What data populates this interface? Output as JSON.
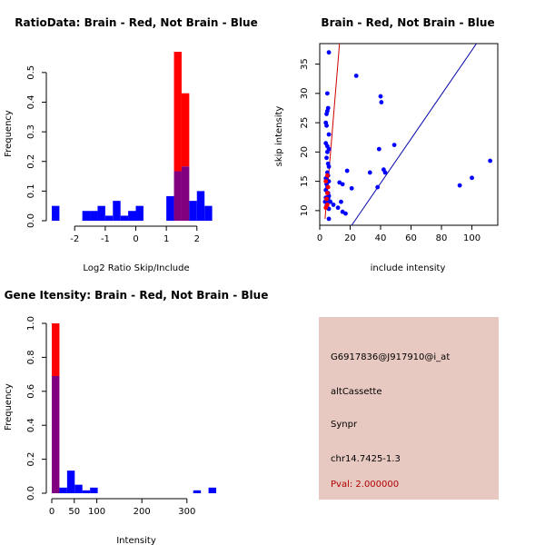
{
  "colors": {
    "brain": "#ff0000",
    "not_brain": "#0000ff",
    "overlap": "#800080",
    "info_bg": "#e8c9c1",
    "pval": "#b00000",
    "ink": "#000000",
    "diag": "#0000aa",
    "fit": "#cc0000"
  },
  "chart_data": [
    {
      "id": "ratio",
      "type": "bar",
      "title": "RatioData: Brain - Red, Not Brain - Blue",
      "xlabel": "Log2 Ratio Skip/Include",
      "ylabel": "Frequency",
      "xlim": [
        -2.75,
        2.75
      ],
      "ylim": [
        0,
        0.57
      ],
      "xticks": [
        -2,
        -1,
        0,
        1,
        2
      ],
      "xtick_labels": [
        "-2",
        "-1",
        "0",
        "1",
        "2"
      ],
      "yticks": [
        0,
        0.1,
        0.2,
        0.3,
        0.4,
        0.5
      ],
      "ytick_labels": [
        "0.0",
        "0.1",
        "0.2",
        "0.3",
        "0.4",
        "0.5"
      ],
      "bin_width": 0.25,
      "series": [
        {
          "name": "Not Brain",
          "color": "blue",
          "bins": [
            {
              "x0": -2.75,
              "v": 0.05
            },
            {
              "x0": -1.75,
              "v": 0.033
            },
            {
              "x0": -1.5,
              "v": 0.033
            },
            {
              "x0": -1.25,
              "v": 0.05
            },
            {
              "x0": -1.0,
              "v": 0.017
            },
            {
              "x0": -0.75,
              "v": 0.067
            },
            {
              "x0": -0.5,
              "v": 0.017
            },
            {
              "x0": -0.25,
              "v": 0.033
            },
            {
              "x0": 0.0,
              "v": 0.05
            },
            {
              "x0": 1.0,
              "v": 0.083
            },
            {
              "x0": 1.25,
              "v": 0.167
            },
            {
              "x0": 1.5,
              "v": 0.183
            },
            {
              "x0": 1.75,
              "v": 0.067
            },
            {
              "x0": 2.0,
              "v": 0.1
            },
            {
              "x0": 2.25,
              "v": 0.05
            }
          ]
        },
        {
          "name": "Brain",
          "color": "red",
          "bins": [
            {
              "x0": 1.25,
              "v": 0.57
            },
            {
              "x0": 1.5,
              "v": 0.43
            }
          ]
        }
      ]
    },
    {
      "id": "scatter",
      "type": "scatter",
      "title": "Brain - Red, Not Brain - Blue",
      "xlabel": "include intensity",
      "ylabel": "skip intensity",
      "xlim": [
        0,
        117
      ],
      "ylim": [
        7.5,
        38.5
      ],
      "xticks": [
        0,
        20,
        40,
        60,
        80,
        100
      ],
      "xtick_labels": [
        "0",
        "20",
        "40",
        "60",
        "80",
        "100"
      ],
      "yticks": [
        10,
        15,
        20,
        25,
        30,
        35
      ],
      "ytick_labels": [
        "10",
        "15",
        "20",
        "25",
        "30",
        "35"
      ],
      "series": [
        {
          "name": "Brain",
          "color": "red",
          "points": [
            [
              4,
              10.5
            ],
            [
              4.5,
              12
            ],
            [
              5,
              11
            ],
            [
              5,
              13
            ],
            [
              5.5,
              14
            ],
            [
              4,
              15
            ],
            [
              5,
              16
            ]
          ]
        },
        {
          "name": "Not Brain",
          "color": "blue",
          "points": [
            [
              6,
              37
            ],
            [
              5,
              30
            ],
            [
              5,
              27
            ],
            [
              5.5,
              27.5
            ],
            [
              4.5,
              26.5
            ],
            [
              4,
              25
            ],
            [
              4.5,
              24.5
            ],
            [
              6,
              23
            ],
            [
              4,
              21.5
            ],
            [
              5,
              21
            ],
            [
              6,
              20.5
            ],
            [
              5,
              20
            ],
            [
              4.5,
              19
            ],
            [
              5.5,
              18
            ],
            [
              6,
              17.5
            ],
            [
              5,
              16.5
            ],
            [
              5.5,
              16
            ],
            [
              4,
              15.5
            ],
            [
              6,
              15
            ],
            [
              4.5,
              14.5
            ],
            [
              5,
              14
            ],
            [
              4,
              13.5
            ],
            [
              5.5,
              13
            ],
            [
              6,
              12.5
            ],
            [
              4,
              12.2
            ],
            [
              5.5,
              12
            ],
            [
              3.5,
              11.5
            ],
            [
              5,
              11.5
            ],
            [
              4.5,
              10.8
            ],
            [
              6,
              10.3
            ],
            [
              7,
              11.5
            ],
            [
              9,
              11
            ],
            [
              12,
              10.5
            ],
            [
              14,
              11.5
            ],
            [
              15,
              9.8
            ],
            [
              17,
              9.5
            ],
            [
              6,
              8.6
            ],
            [
              13,
              14.8
            ],
            [
              15,
              14.5
            ],
            [
              18,
              16.8
            ],
            [
              21,
              13.8
            ],
            [
              24,
              33
            ],
            [
              33,
              16.5
            ],
            [
              38,
              14
            ],
            [
              39,
              20.5
            ],
            [
              40,
              29.5
            ],
            [
              40.5,
              28.5
            ],
            [
              42,
              17
            ],
            [
              43,
              16.5
            ],
            [
              49,
              21.2
            ],
            [
              92,
              14.3
            ],
            [
              100,
              15.6
            ],
            [
              112,
              18.5
            ]
          ]
        }
      ],
      "lines": [
        {
          "name": "red-fit",
          "color": "red",
          "from": [
            3.5,
            8.6
          ],
          "to": [
            13,
            38.5
          ]
        },
        {
          "name": "blue-diagonal",
          "color": "blue",
          "from": [
            21,
            7.5
          ],
          "to": [
            103,
            38.5
          ]
        }
      ]
    },
    {
      "id": "intensity",
      "type": "bar",
      "title": "Gene Itensity: Brain - Red, Not Brain - Blue",
      "xlabel": "Intensity",
      "ylabel": "Frequency",
      "xlim": [
        0,
        373
      ],
      "ylim": [
        0,
        1.0
      ],
      "xticks": [
        0,
        50,
        100,
        200,
        300
      ],
      "xtick_labels": [
        "0",
        "50",
        "100",
        "200",
        "300"
      ],
      "yticks": [
        0,
        0.2,
        0.4,
        0.6,
        0.8,
        1.0
      ],
      "ytick_labels": [
        "0.0",
        "0.2",
        "0.4",
        "0.6",
        "0.8",
        "1.0"
      ],
      "bin_width": 17,
      "series": [
        {
          "name": "Not Brain",
          "color": "blue",
          "bins": [
            {
              "x0": 0,
              "v": 0.69
            },
            {
              "x0": 17,
              "v": 0.033
            },
            {
              "x0": 34,
              "v": 0.133
            },
            {
              "x0": 51,
              "v": 0.05
            },
            {
              "x0": 68,
              "v": 0.017
            },
            {
              "x0": 85,
              "v": 0.033
            },
            {
              "x0": 314,
              "v": 0.017
            },
            {
              "x0": 348,
              "v": 0.033
            }
          ]
        },
        {
          "name": "Brain",
          "color": "red",
          "bins": [
            {
              "x0": 0,
              "v": 1.0
            }
          ]
        }
      ]
    }
  ],
  "info_panel": {
    "probe_id": "G6917836@J917910@i_at",
    "event_type": "altCassette",
    "gene": "Synpr",
    "location": "chr14.7425-1.3",
    "pval": "Pval: 2.000000"
  }
}
